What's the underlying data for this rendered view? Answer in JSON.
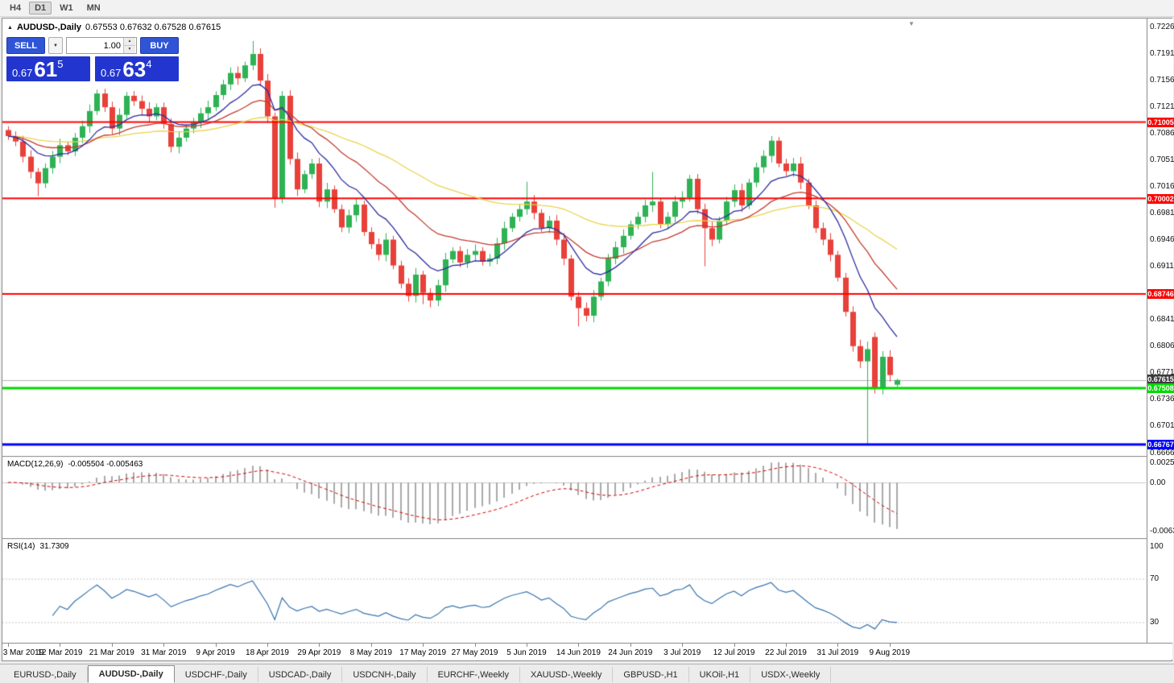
{
  "toolbar": {
    "buttons": [
      {
        "label": "H4",
        "active": false
      },
      {
        "label": "D1",
        "active": true
      },
      {
        "label": "W1",
        "active": false
      },
      {
        "label": "MN",
        "active": false
      }
    ]
  },
  "chart": {
    "symbol_header": {
      "symbol": "AUDUSD-,Daily",
      "ohlc": "0.67553 0.67632 0.67528 0.67615"
    }
  },
  "trade_panel": {
    "sell_label": "SELL",
    "buy_label": "BUY",
    "volume": "1.00",
    "sell_price": {
      "prefix": "0.67",
      "big": "61",
      "sup": "5"
    },
    "buy_price": {
      "prefix": "0.67",
      "big": "63",
      "sup": "4"
    }
  },
  "icons": {
    "header_arrow": "▲",
    "dropdown": "▼",
    "spin_up": "▲",
    "spin_down": "▼",
    "shift_marker": "▼"
  },
  "macd": {
    "name": "MACD(12,26,9)",
    "values": "-0.005504 -0.005463",
    "scale": [
      {
        "text": "0.002574",
        "value": 0.002574
      },
      {
        "text": "0.00",
        "value": 0
      },
      {
        "text": "-0.00632",
        "value": -0.00632
      }
    ]
  },
  "rsi": {
    "name": "RSI(14)",
    "value": "31.7309",
    "levels": [
      {
        "text": "100",
        "value": 100
      },
      {
        "text": "70",
        "value": 70
      },
      {
        "text": "30",
        "value": 30
      }
    ]
  },
  "date_axis": {
    "label_step": 7,
    "labels": [
      "3 Mar 2019",
      "12 Mar 2019",
      "21 Mar 2019",
      "31 Mar 2019",
      "9 Apr 2019",
      "18 Apr 2019",
      "29 Apr 2019",
      "8 May 2019",
      "17 May 2019",
      "27 May 2019",
      "5 Jun 2019",
      "14 Jun 2019",
      "24 Jun 2019",
      "3 Jul 2019",
      "12 Jul 2019",
      "22 Jul 2019",
      "31 Jul 2019",
      "9 Aug 2019"
    ]
  },
  "tabs": [
    {
      "label": "EURUSD-,Daily",
      "active": false
    },
    {
      "label": "AUDUSD-,Daily",
      "active": true
    },
    {
      "label": "USDCHF-,Daily",
      "active": false
    },
    {
      "label": "USDCAD-,Daily",
      "active": false
    },
    {
      "label": "USDCNH-,Daily",
      "active": false
    },
    {
      "label": "EURCHF-,Weekly",
      "active": false
    },
    {
      "label": "XAUUSD-,Weekly",
      "active": false
    },
    {
      "label": "GBPUSD-,H1",
      "active": false
    },
    {
      "label": "UKOil-,H1",
      "active": false
    },
    {
      "label": "USDX-,Weekly",
      "active": false
    }
  ],
  "colors": {
    "bull": "#2eb254",
    "bear": "#e8403a",
    "ma_fast": "#2b2ba0",
    "ma_mid": "#c23b2e",
    "ma_slow": "#e9d34b",
    "hline_red": "#ff0000",
    "hline_green": "#00d800",
    "hline_blue": "#0000ff",
    "macd_hist": "#a9a9a9",
    "macd_signal": "#d40000",
    "rsi_line": "#3674ae",
    "trade_button_blue": "#2f55d6",
    "trade_price_blue": "#2236cf",
    "current_price_chip": "#3c3c3c"
  },
  "chart_data": {
    "type": "candlestick",
    "symbol": "AUDUSD-",
    "timeframe": "Daily",
    "price_axis": {
      "min": 0.6666,
      "max": 0.7226,
      "ticks": [
        "0.72260",
        "0.71910",
        "0.71560",
        "0.71210",
        "0.70860",
        "0.70510",
        "0.70160",
        "0.69810",
        "0.69460",
        "0.69110",
        "0.68760",
        "0.68410",
        "0.68060",
        "0.67710",
        "0.67360",
        "0.67010",
        "0.66660"
      ]
    },
    "hlines": [
      {
        "price": 0.71005,
        "label": "0.71005",
        "color": "#ff0000",
        "thickness": 2
      },
      {
        "price": 0.70002,
        "label": "0.70002",
        "color": "#ff0000",
        "thickness": 2
      },
      {
        "price": 0.68746,
        "label": "0.68746",
        "color": "#ff0000",
        "thickness": 2
      },
      {
        "price": 0.67508,
        "label": "0.67508",
        "color": "#00d800",
        "thickness": 3
      },
      {
        "price": 0.66767,
        "label": "0.66767",
        "color": "#0000ff",
        "thickness": 3
      }
    ],
    "current_price": {
      "price": 0.67615,
      "label": "0.67615"
    },
    "indicators": {
      "ma_periods": [
        10,
        22,
        55
      ],
      "macd": [
        12,
        26,
        9
      ],
      "rsi": 14
    },
    "candles": {
      "closes": [
        0.7082,
        0.7075,
        0.7055,
        0.7035,
        0.702,
        0.704,
        0.7055,
        0.707,
        0.7062,
        0.708,
        0.7095,
        0.7115,
        0.7138,
        0.712,
        0.7092,
        0.711,
        0.7135,
        0.7128,
        0.7118,
        0.7108,
        0.712,
        0.7098,
        0.7068,
        0.708,
        0.7092,
        0.71,
        0.7112,
        0.712,
        0.7136,
        0.715,
        0.7165,
        0.7158,
        0.7175,
        0.719,
        0.7155,
        0.7108,
        0.7,
        0.7135,
        0.7052,
        0.7012,
        0.7032,
        0.7046,
        0.6996,
        0.7012,
        0.6986,
        0.6962,
        0.6978,
        0.6992,
        0.6956,
        0.694,
        0.6926,
        0.6946,
        0.6912,
        0.6888,
        0.6872,
        0.69,
        0.6876,
        0.6866,
        0.6886,
        0.692,
        0.6931,
        0.6916,
        0.6926,
        0.6931,
        0.6917,
        0.6921,
        0.6941,
        0.6961,
        0.6976,
        0.6986,
        0.6996,
        0.6981,
        0.6961,
        0.6971,
        0.6946,
        0.6921,
        0.6871,
        0.6856,
        0.6846,
        0.6871,
        0.6891,
        0.6921,
        0.6936,
        0.6951,
        0.6966,
        0.6976,
        0.6991,
        0.6996,
        0.6966,
        0.6976,
        0.6996,
        0.7001,
        0.7026,
        0.6986,
        0.6961,
        0.6946,
        0.6971,
        0.6996,
        0.7011,
        0.6991,
        0.7021,
        0.7041,
        0.7056,
        0.7076,
        0.7046,
        0.7036,
        0.7046,
        0.7021,
        0.6991,
        0.6961,
        0.6946,
        0.6926,
        0.6896,
        0.6851,
        0.6806,
        0.6786,
        0.6802,
        0.675,
        0.6792,
        0.6768,
        0.67615
      ],
      "open_overrides": {
        "0": 0.709,
        "117": 0.6818,
        "120": 0.67553
      },
      "high_overrides": {
        "33": 0.7207,
        "70": 0.7022,
        "87": 0.7035,
        "103": 0.7082,
        "116": 0.6812,
        "120": 0.67632
      },
      "low_overrides": {
        "4": 0.7003,
        "36": 0.6988,
        "56": 0.6861,
        "57": 0.6857,
        "77": 0.6832,
        "94": 0.6911,
        "116": 0.6677,
        "120": 0.67528
      }
    }
  }
}
